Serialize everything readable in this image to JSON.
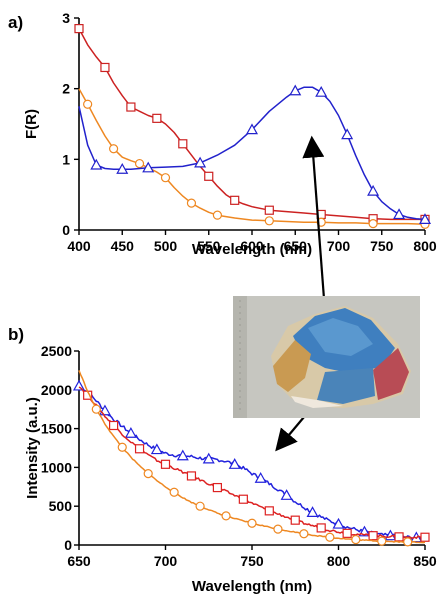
{
  "chart_data": [
    {
      "panel_label": "a)",
      "type": "line",
      "xlabel": "Wavelength (nm)",
      "ylabel": "F(R)",
      "xlim": [
        400,
        800
      ],
      "ylim": [
        0,
        3
      ],
      "xticks": [
        "400",
        "450",
        "500",
        "550",
        "600",
        "650",
        "700",
        "750",
        "800"
      ],
      "yticks": [
        "0",
        "1",
        "2",
        "3"
      ],
      "series": [
        {
          "color": "#cc2222",
          "marker": "square",
          "x": [
            400,
            410,
            420,
            430,
            440,
            450,
            460,
            470,
            480,
            490,
            500,
            510,
            520,
            530,
            540,
            550,
            560,
            570,
            580,
            590,
            600,
            620,
            640,
            660,
            680,
            700,
            720,
            740,
            760,
            780,
            800
          ],
          "y": [
            2.85,
            2.62,
            2.45,
            2.3,
            2.08,
            1.9,
            1.74,
            1.68,
            1.62,
            1.58,
            1.5,
            1.38,
            1.22,
            1.06,
            0.9,
            0.76,
            0.62,
            0.5,
            0.42,
            0.37,
            0.33,
            0.28,
            0.26,
            0.24,
            0.22,
            0.2,
            0.18,
            0.16,
            0.15,
            0.15,
            0.15
          ]
        },
        {
          "color": "#ee8822",
          "marker": "circle",
          "x": [
            400,
            410,
            420,
            430,
            440,
            450,
            460,
            470,
            480,
            490,
            500,
            510,
            520,
            530,
            540,
            550,
            560,
            580,
            600,
            620,
            640,
            660,
            680,
            700,
            720,
            740,
            760,
            780,
            800
          ],
          "y": [
            2.0,
            1.78,
            1.55,
            1.33,
            1.15,
            1.03,
            0.98,
            0.94,
            0.88,
            0.82,
            0.74,
            0.6,
            0.48,
            0.38,
            0.31,
            0.25,
            0.21,
            0.17,
            0.14,
            0.13,
            0.12,
            0.11,
            0.11,
            0.1,
            0.1,
            0.09,
            0.09,
            0.09,
            0.08
          ]
        },
        {
          "color": "#2222cc",
          "marker": "triangle",
          "x": [
            400,
            410,
            420,
            430,
            440,
            450,
            460,
            470,
            480,
            500,
            520,
            540,
            560,
            580,
            600,
            620,
            640,
            650,
            660,
            670,
            680,
            690,
            700,
            710,
            720,
            730,
            740,
            750,
            760,
            770,
            780,
            790,
            800
          ],
          "y": [
            1.75,
            1.2,
            0.92,
            0.87,
            0.86,
            0.86,
            0.86,
            0.87,
            0.88,
            0.89,
            0.9,
            0.95,
            1.06,
            1.2,
            1.42,
            1.68,
            1.88,
            1.97,
            2.02,
            2.02,
            1.95,
            1.82,
            1.62,
            1.35,
            1.05,
            0.78,
            0.55,
            0.4,
            0.3,
            0.22,
            0.18,
            0.16,
            0.15
          ]
        }
      ]
    },
    {
      "panel_label": "b)",
      "type": "line",
      "xlabel": "Wavelength (nm)",
      "ylabel": "Intensity (a.u.)",
      "xlim": [
        650,
        850
      ],
      "ylim": [
        0,
        2500
      ],
      "xticks": [
        "650",
        "700",
        "750",
        "800",
        "850"
      ],
      "yticks": [
        "0",
        "500",
        "1000",
        "1500",
        "2000",
        "2500"
      ],
      "series": [
        {
          "color": "#2222dd",
          "marker": "triangle",
          "noise": 45,
          "x": [
            650,
            655,
            660,
            665,
            670,
            675,
            680,
            685,
            690,
            695,
            700,
            705,
            710,
            715,
            720,
            725,
            730,
            735,
            740,
            745,
            750,
            755,
            760,
            765,
            770,
            775,
            780,
            785,
            790,
            795,
            800,
            805,
            810,
            815,
            820,
            825,
            830,
            835,
            840,
            845,
            850
          ],
          "y": [
            2050,
            1970,
            1860,
            1730,
            1620,
            1530,
            1440,
            1360,
            1290,
            1230,
            1180,
            1160,
            1150,
            1140,
            1120,
            1110,
            1100,
            1080,
            1040,
            990,
            920,
            860,
            790,
            720,
            640,
            560,
            490,
            420,
            360,
            310,
            270,
            230,
            200,
            170,
            150,
            130,
            120,
            110,
            100,
            95,
            90
          ]
        },
        {
          "color": "#dd2222",
          "marker": "square",
          "noise": 30,
          "x": [
            650,
            655,
            660,
            665,
            670,
            675,
            680,
            685,
            690,
            695,
            700,
            705,
            710,
            715,
            720,
            725,
            730,
            735,
            740,
            745,
            750,
            755,
            760,
            765,
            770,
            775,
            780,
            785,
            790,
            795,
            800,
            805,
            810,
            815,
            820,
            825,
            830,
            835,
            840,
            845,
            850
          ],
          "y": [
            2050,
            1930,
            1800,
            1660,
            1540,
            1430,
            1330,
            1240,
            1160,
            1090,
            1040,
            990,
            940,
            890,
            840,
            790,
            740,
            690,
            640,
            590,
            540,
            490,
            440,
            400,
            360,
            320,
            280,
            250,
            220,
            190,
            170,
            150,
            140,
            130,
            120,
            115,
            110,
            105,
            100,
            100,
            100
          ]
        },
        {
          "color": "#ee8822",
          "marker": "circle",
          "noise": 12,
          "x": [
            650,
            655,
            660,
            665,
            670,
            675,
            680,
            685,
            690,
            695,
            700,
            705,
            710,
            715,
            720,
            725,
            730,
            735,
            740,
            745,
            750,
            755,
            760,
            765,
            770,
            775,
            780,
            785,
            790,
            795,
            800,
            805,
            810,
            815,
            820,
            825,
            830,
            835,
            840,
            845,
            850
          ],
          "y": [
            2250,
            1980,
            1750,
            1560,
            1400,
            1260,
            1130,
            1020,
            920,
            830,
            750,
            680,
            610,
            550,
            500,
            455,
            410,
            375,
            340,
            310,
            280,
            255,
            230,
            205,
            185,
            165,
            145,
            128,
            112,
            100,
            88,
            78,
            70,
            62,
            55,
            50,
            46,
            42,
            40,
            38,
            36
          ]
        }
      ]
    }
  ]
}
